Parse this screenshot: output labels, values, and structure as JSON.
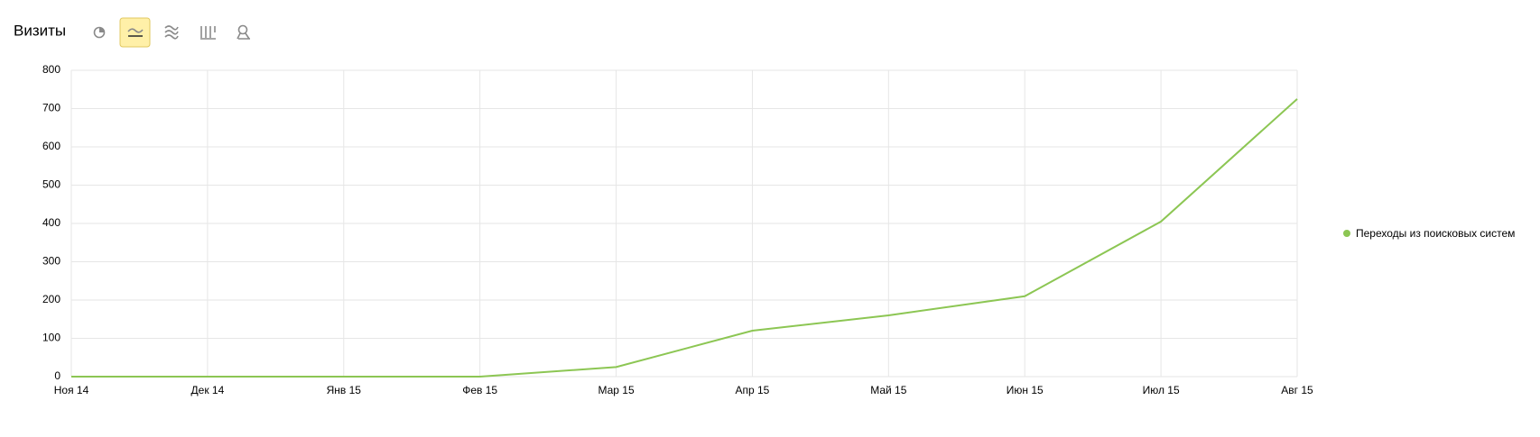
{
  "chart_data": {
    "type": "line",
    "title": "Визиты",
    "categories": [
      "Ноя 14",
      "Дек 14",
      "Янв 15",
      "Фев 15",
      "Мар 15",
      "Апр 15",
      "Май 15",
      "Июн 15",
      "Июл 15",
      "Авг 15"
    ],
    "series": [
      {
        "name": "Переходы из поисковых систем",
        "color": "#8cc653",
        "values": [
          0,
          0,
          0,
          0,
          25,
          120,
          160,
          210,
          405,
          725
        ]
      }
    ],
    "ylim": [
      0,
      800
    ],
    "yticks": [
      0,
      100,
      200,
      300,
      400,
      500,
      600,
      700,
      800
    ],
    "grid": true,
    "legend": "right"
  }
}
